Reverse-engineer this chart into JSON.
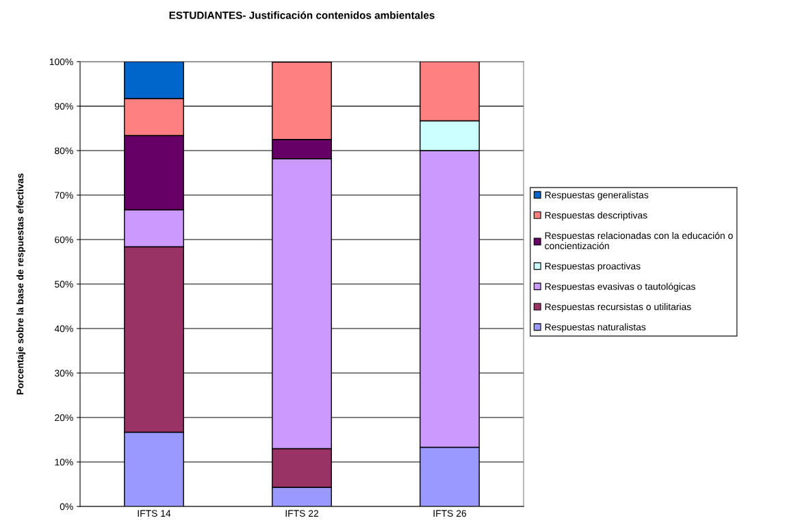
{
  "chart_data": {
    "type": "bar",
    "stacked": true,
    "title": "ESTUDIANTES- Justificación contenidos ambientales",
    "ylabel": "Porcentaje sobre la base de respuestas efectivas",
    "categories": [
      "IFTS 14",
      "IFTS 22",
      "IFTS 26"
    ],
    "series": [
      {
        "name": "Respuestas naturalistas",
        "color": "#9999ff",
        "values": [
          16.7,
          4.3,
          13.3
        ]
      },
      {
        "name": "Respuestas recursistas o utilitarias",
        "color": "#993366",
        "values": [
          41.7,
          8.7,
          null
        ]
      },
      {
        "name": "Respuestas evasivas o tautológicas",
        "color": "#cc99ff",
        "values": [
          8.3,
          65.2,
          66.7
        ]
      },
      {
        "name": "Respuestas proactivas",
        "color": "#ccffff",
        "values": [
          null,
          null,
          6.7
        ]
      },
      {
        "name": "Respuestas relacionadas con la educación o\nconcientización",
        "color": "#660066",
        "values": [
          16.7,
          4.3,
          null
        ]
      },
      {
        "name": "Respuestas descriptivas",
        "color": "#ff8080",
        "values": [
          8.3,
          17.4,
          13.3
        ]
      },
      {
        "name": "Respuestas generalistas",
        "color": "#0066cc",
        "values": [
          8.3,
          null,
          null
        ]
      }
    ],
    "ylim": [
      0,
      100
    ],
    "yticks": [
      {
        "value": 0,
        "label": "0%"
      },
      {
        "value": 10,
        "label": "10%"
      },
      {
        "value": 20,
        "label": "20%"
      },
      {
        "value": 30,
        "label": "30%"
      },
      {
        "value": 40,
        "label": "40%"
      },
      {
        "value": 50,
        "label": "50%"
      },
      {
        "value": 60,
        "label": "60%"
      },
      {
        "value": 70,
        "label": "70%"
      },
      {
        "value": 80,
        "label": "80%"
      },
      {
        "value": 90,
        "label": "90%"
      },
      {
        "value": 100,
        "label": "100%"
      }
    ],
    "grid": "y",
    "legend": "right"
  }
}
